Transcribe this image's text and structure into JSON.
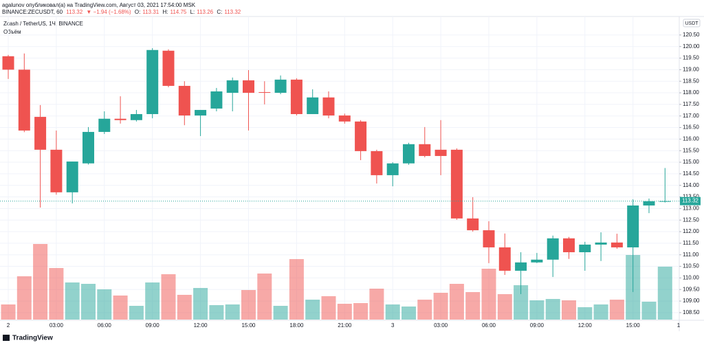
{
  "header": {
    "line1": "agalunov опубликовал(а) на TradingView.com, Август 03, 2021 17:54:00 MSK",
    "symbol": "BINANCE:ZECUSDT, 60",
    "change": "▼ −1.94 (−1.68%)",
    "o_label": "O:",
    "h_label": "H:",
    "l_label": "L:",
    "c_label": "C:"
  },
  "footer": "TradingView",
  "chart_data": {
    "type": "candlestick",
    "title": "Zcash / TetherUS, 1Ч, BINANCE",
    "volume_title": "Объём",
    "currency": "USDT",
    "up_color": "#26a69a",
    "down_color": "#ef5350",
    "categories": [
      "2",
      null,
      null,
      "03:00",
      null,
      null,
      "06:00",
      null,
      null,
      "09:00",
      null,
      null,
      "12:00",
      null,
      null,
      "15:00",
      null,
      null,
      "18:00",
      null,
      null,
      "21:00",
      null,
      null,
      "3",
      null,
      null,
      "03:00",
      null,
      null,
      "06:00",
      null,
      null,
      "09:00",
      null,
      null,
      "12:00",
      null,
      null,
      "15:00",
      null,
      null
    ],
    "x_axis_end_label": "1",
    "open": [
      119.58,
      119.0,
      116.96,
      115.54,
      113.7,
      114.95,
      116.31,
      116.88,
      116.82,
      117.08,
      119.82,
      118.3,
      117.02,
      117.32,
      118.0,
      118.54,
      118.03,
      118.0,
      118.57,
      117.08,
      117.8,
      117.02,
      116.76,
      115.48,
      114.44,
      114.95,
      115.78,
      115.54,
      115.54,
      112.57,
      112.06,
      111.32,
      110.31,
      110.67,
      110.79,
      111.71,
      111.11,
      111.44,
      111.53,
      111.32,
      113.13,
      113.31
    ],
    "high": [
      119.64,
      119.7,
      117.47,
      116.37,
      115.03,
      116.52,
      117.2,
      117.85,
      117.26,
      119.93,
      119.88,
      118.5,
      117.26,
      118.21,
      118.66,
      118.98,
      118.5,
      118.75,
      118.63,
      118.15,
      118.06,
      117.1,
      116.82,
      115.54,
      115.0,
      115.84,
      116.52,
      116.82,
      115.6,
      113.49,
      112.45,
      111.92,
      111.11,
      111.08,
      111.83,
      111.77,
      111.56,
      111.97,
      111.91,
      113.4,
      113.43,
      114.75
    ],
    "low": [
      118.6,
      116.3,
      113.04,
      113.6,
      113.22,
      114.9,
      116.22,
      116.67,
      116.76,
      116.9,
      118.24,
      116.6,
      116.13,
      117.2,
      117.2,
      116.37,
      117.5,
      117.94,
      117.02,
      117.08,
      116.9,
      116.67,
      115.09,
      114.08,
      113.96,
      114.89,
      115.21,
      114.44,
      112.51,
      112.0,
      110.64,
      110.13,
      109.3,
      110.64,
      110.04,
      110.82,
      110.31,
      110.73,
      111.26,
      109.39,
      112.8,
      113.26
    ],
    "close": [
      119.0,
      116.37,
      115.54,
      113.7,
      115.03,
      116.31,
      116.88,
      116.82,
      117.08,
      119.85,
      118.3,
      117.02,
      117.26,
      118.06,
      118.54,
      118.0,
      118.0,
      118.57,
      117.08,
      117.8,
      117.02,
      116.76,
      115.48,
      114.44,
      114.95,
      115.78,
      115.27,
      115.27,
      112.57,
      112.06,
      111.32,
      110.31,
      110.67,
      110.79,
      111.71,
      111.11,
      111.44,
      111.53,
      111.32,
      113.13,
      113.31,
      113.32
    ],
    "volume": [
      22,
      63,
      110,
      75,
      54,
      52,
      44,
      35,
      20,
      54,
      66,
      36,
      46,
      21,
      22,
      43,
      67,
      20,
      88,
      29,
      34,
      23,
      24,
      45,
      22,
      19,
      29,
      39,
      52,
      40,
      74,
      37,
      50,
      28,
      30,
      28,
      18,
      22,
      29,
      94,
      26,
      77
    ],
    "ylim": [
      108.2,
      121.12
    ],
    "yticks": [
      {
        "value": 108.5,
        "label": "108.50"
      },
      {
        "value": 109,
        "label": "109.00"
      },
      {
        "value": 109.5,
        "label": "109.50"
      },
      {
        "value": 110,
        "label": "110.00"
      },
      {
        "value": 110.5,
        "label": "110.50"
      },
      {
        "value": 111,
        "label": "111.00"
      },
      {
        "value": 111.5,
        "label": "111.50"
      },
      {
        "value": 112,
        "label": "112.00"
      },
      {
        "value": 112.5,
        "label": "112.50"
      },
      {
        "value": 113,
        "label": "113.00"
      },
      {
        "value": 113.5,
        "label": "113.50"
      },
      {
        "value": 114,
        "label": "114.00"
      },
      {
        "value": 114.5,
        "label": "114.50"
      },
      {
        "value": 115,
        "label": "115.00"
      },
      {
        "value": 115.5,
        "label": "115.50"
      },
      {
        "value": 116,
        "label": "116.00"
      },
      {
        "value": 116.5,
        "label": "116.50"
      },
      {
        "value": 117,
        "label": "117.00"
      },
      {
        "value": 117.5,
        "label": "117.50"
      },
      {
        "value": 118,
        "label": "118.00"
      },
      {
        "value": 118.5,
        "label": "118.50"
      },
      {
        "value": 119,
        "label": "119.00"
      },
      {
        "value": 119.5,
        "label": "119.50"
      },
      {
        "value": 120,
        "label": "120.00"
      },
      {
        "value": 120.5,
        "label": "120.50"
      }
    ],
    "grid": true
  }
}
